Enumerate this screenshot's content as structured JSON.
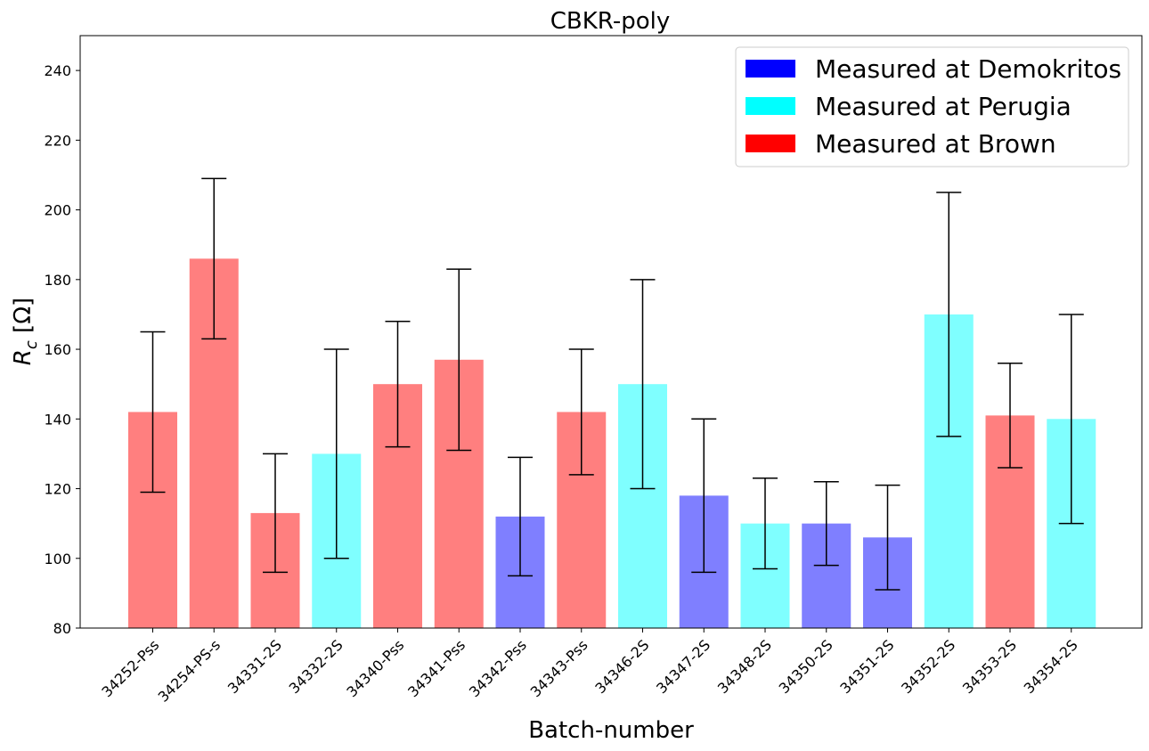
{
  "chart_data": {
    "type": "bar",
    "title": "CBKR-poly",
    "xlabel": "Batch-number",
    "ylabel_symbol": "R",
    "ylabel_subscript": "c",
    "ylabel_unit": " [Ω]",
    "ylim": [
      80,
      250
    ],
    "yticks": [
      80,
      100,
      120,
      140,
      160,
      180,
      200,
      220,
      240
    ],
    "grid": false,
    "legend_position": "top-right",
    "legend": [
      {
        "label": "Measured at Demokritos",
        "color": "#0000ff",
        "key": "demokritos"
      },
      {
        "label": "Measured at Perugia",
        "color": "#00ffff",
        "key": "perugia"
      },
      {
        "label": "Measured at Brown",
        "color": "#ff0000",
        "key": "brown"
      }
    ],
    "bar_alpha": 0.5,
    "categories": [
      "34252-Pss",
      "34254-PS-s",
      "34331-2S",
      "34332-2S",
      "34340-Pss",
      "34341-Pss",
      "34342-Pss",
      "34343-Pss",
      "34346-2S",
      "34347-2S",
      "34348-2S",
      "34350-2S",
      "34351-2S",
      "34352-2S",
      "34353-2S",
      "34354-2S"
    ],
    "values": [
      142,
      186,
      113,
      130,
      150,
      157,
      112,
      142,
      150,
      118,
      110,
      110,
      106,
      170,
      141,
      140
    ],
    "errors": [
      23,
      23,
      17,
      30,
      18,
      26,
      17,
      18,
      30,
      22,
      13,
      12,
      15,
      35,
      15,
      30
    ],
    "site": [
      "brown",
      "brown",
      "brown",
      "perugia",
      "brown",
      "brown",
      "demokritos",
      "brown",
      "perugia",
      "demokritos",
      "perugia",
      "demokritos",
      "demokritos",
      "perugia",
      "brown",
      "perugia"
    ]
  }
}
